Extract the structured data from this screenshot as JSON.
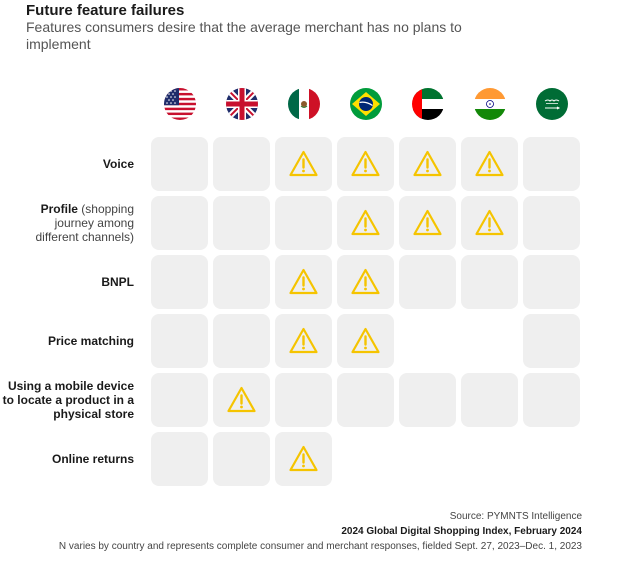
{
  "title": "Future feature failures",
  "subtitle": "Features consumers desire that the average merchant has no plans to implement",
  "chart_data": {
    "type": "table",
    "countries": [
      {
        "flag": "us-flag-icon"
      },
      {
        "flag": "uk-flag-icon"
      },
      {
        "flag": "mexico-flag-icon"
      },
      {
        "flag": "brazil-flag-icon"
      },
      {
        "flag": "uae-flag-icon"
      },
      {
        "flag": "india-flag-icon"
      },
      {
        "flag": "saudi-arabia-flag-icon"
      }
    ],
    "rows": [
      {
        "label_bold": "Voice",
        "label_note": "",
        "cells": [
          "grey",
          "grey",
          "warn",
          "warn",
          "warn",
          "warn",
          "grey"
        ]
      },
      {
        "label_bold": "Profile",
        "label_note": " (shopping journey among different channels)",
        "cells": [
          "grey",
          "grey",
          "grey",
          "warn",
          "warn",
          "warn",
          "grey"
        ]
      },
      {
        "label_bold": "BNPL",
        "label_note": "",
        "cells": [
          "grey",
          "grey",
          "warn",
          "warn",
          "grey",
          "grey",
          "grey"
        ]
      },
      {
        "label_bold": "Price matching",
        "label_note": "",
        "cells": [
          "grey",
          "grey",
          "warn",
          "warn",
          "empty",
          "empty",
          "grey"
        ]
      },
      {
        "label_bold": "Using a mobile device to locate a product in a physical store",
        "label_note": "",
        "cells": [
          "grey",
          "warn",
          "grey",
          "grey",
          "grey",
          "grey",
          "grey"
        ]
      },
      {
        "label_bold": "Online returns",
        "label_note": "",
        "cells": [
          "grey",
          "grey",
          "warn",
          "empty",
          "empty",
          "empty",
          "empty"
        ]
      }
    ],
    "legend": {
      "warn": "warning-icon",
      "grey": "no-gap"
    }
  },
  "footer": {
    "source": "Source: PYMNTS Intelligence",
    "report": "2024 Global Digital Shopping Index, February 2024",
    "note": "N varies by country and represents complete consumer and merchant responses, fielded Sept. 27, 2023–Dec. 1, 2023"
  },
  "colors": {
    "cell": "#efefef",
    "warn_stroke": "#f5c400",
    "text": "#1a1a1a"
  }
}
